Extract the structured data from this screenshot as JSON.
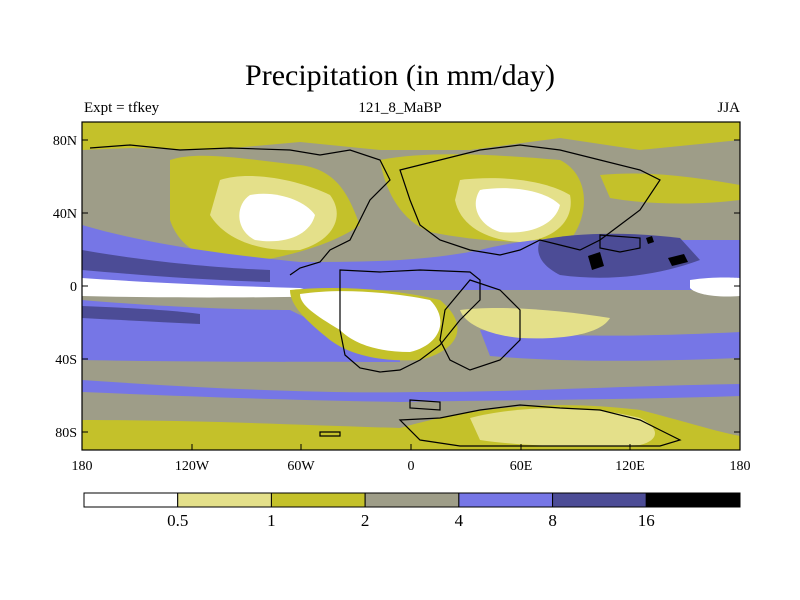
{
  "header": {
    "title": "Precipitation (in mm/day)",
    "left_label": "Expt = tfkey",
    "center_label": "121_8_MaBP",
    "right_label": "JJA"
  },
  "map": {
    "lat_ticks": [
      "80N",
      "40N",
      "0",
      "40S",
      "80S"
    ],
    "lon_ticks": [
      "180",
      "120W",
      "60W",
      "0",
      "60E",
      "120E",
      "180"
    ]
  },
  "colorbar": {
    "labels": [
      "0.5",
      "1",
      "2",
      "4",
      "8",
      "16"
    ],
    "colors": [
      "#ffffff",
      "#e4e08a",
      "#c4c12a",
      "#9e9d88",
      "#7676e6",
      "#4c4c96",
      "#000000"
    ]
  }
}
